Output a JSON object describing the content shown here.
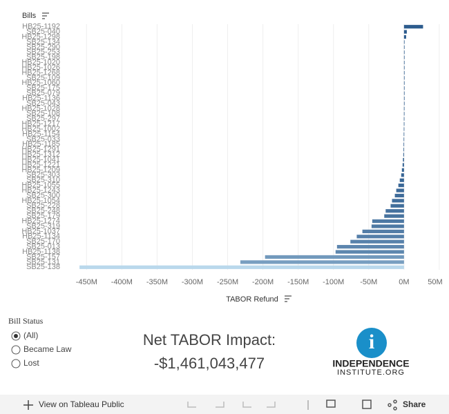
{
  "chart_data": {
    "type": "bar",
    "orientation": "horizontal",
    "y_axis_label": "Bills",
    "x_axis_label": "TABOR Refund",
    "categories": [
      "HB25-1192",
      "SB25-040",
      "HB25-1298",
      "SB25-134",
      "SB25-290",
      "SB25-253",
      "SB25-198",
      "HB25-1020",
      "HB25-1026",
      "HB25-1268",
      "SB25-109",
      "HB25-1060",
      "SB25-175",
      "SB25-079",
      "HB25-1136",
      "SB25-043",
      "HB25-1028",
      "SB25-108",
      "SB25-297",
      "HB25-1217",
      "HB25-1002",
      "HB25-1154",
      "SB25-033",
      "HB25-1185",
      "HB25-1291",
      "HB25-1312",
      "HB25-1041",
      "HB25-1221",
      "HB25-1209",
      "SB25-303",
      "SB25-310",
      "HB25-1055",
      "HB25-1243",
      "SB25-300",
      "HB25-1054",
      "SB25-228",
      "SB25-248",
      "SB25-179",
      "HB25-1274",
      "SB25-319",
      "HB25-1037",
      "HB25-1134",
      "SB25-170",
      "SB25-013",
      "HB25-1138",
      "SB25-157",
      "SB25-131",
      "SB25-138"
    ],
    "values": [
      27,
      4,
      3,
      0.5,
      0.4,
      0.3,
      0.3,
      0.2,
      0.2,
      0.2,
      0.1,
      0.1,
      0.1,
      0,
      0,
      0,
      -0.1,
      -0.1,
      -0.2,
      -0.2,
      -0.3,
      -0.4,
      -0.5,
      -0.6,
      -0.8,
      -1,
      -1.5,
      -2,
      -3,
      -4,
      -6,
      -8,
      -11,
      -13,
      -17,
      -19,
      -26,
      -28,
      -45,
      -46,
      -59,
      -67,
      -76,
      -95,
      -97,
      -197,
      -232,
      -460
    ],
    "color_scale": [
      "#2d5c8e",
      "#b9d8ec"
    ],
    "xlim": [
      -465,
      54
    ],
    "xticks": [
      {
        "value": -450,
        "label": "-450M"
      },
      {
        "value": -400,
        "label": "-400M"
      },
      {
        "value": -350,
        "label": "-350M"
      },
      {
        "value": -300,
        "label": "-300M"
      },
      {
        "value": -250,
        "label": "-250M"
      },
      {
        "value": -200,
        "label": "-200M"
      },
      {
        "value": -150,
        "label": "-150M"
      },
      {
        "value": -100,
        "label": "-100M"
      },
      {
        "value": -50,
        "label": "-50M"
      },
      {
        "value": 0,
        "label": "0M"
      },
      {
        "value": 50,
        "label": "50M"
      }
    ],
    "grid": true
  },
  "filter": {
    "title": "Bill Status",
    "options": [
      "(All)",
      "Became Law",
      "Lost"
    ],
    "selected": 0
  },
  "summary": {
    "title": "Net TABOR Impact:",
    "value": "-$1,461,043,477"
  },
  "logo": {
    "name": "INDEPENDENCE",
    "site": "INSTITUTE.ORG"
  },
  "toolbar": {
    "view": "View on Tableau Public",
    "share": "Share"
  }
}
